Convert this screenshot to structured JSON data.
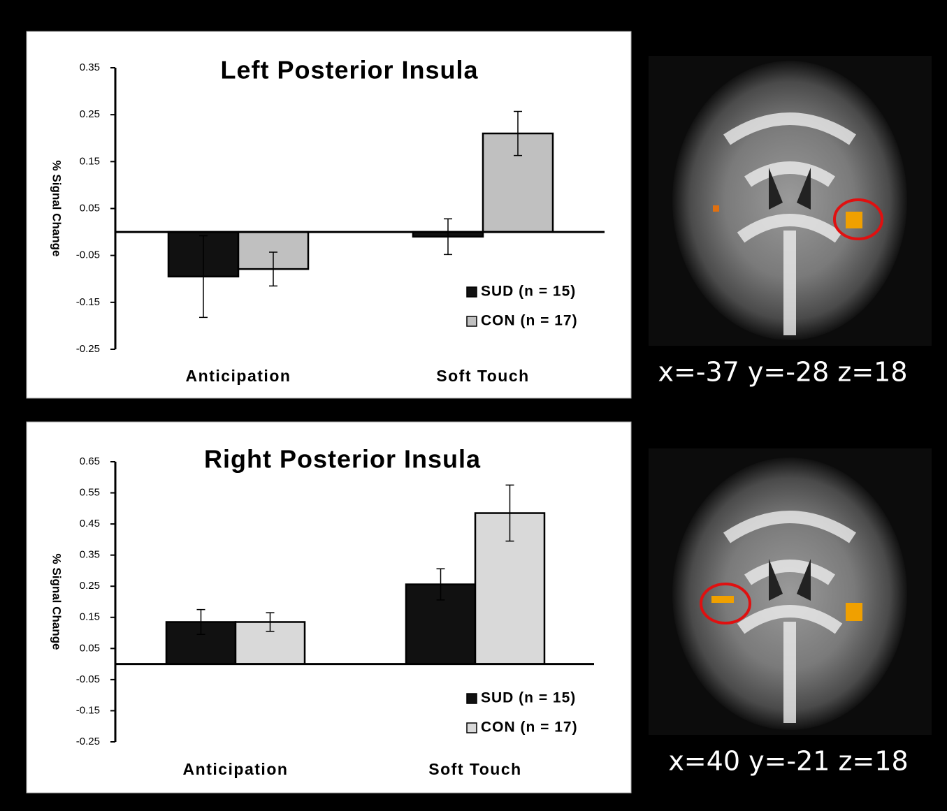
{
  "chart_data": [
    {
      "type": "bar",
      "title": "Left Posterior Insula",
      "y_label": "% Signal Change",
      "categories": [
        "Anticipation",
        "Soft Touch"
      ],
      "series": [
        {
          "name": "SUD (n = 15)",
          "color": "#111111",
          "values": [
            -0.095,
            -0.01
          ],
          "errors": [
            0.087,
            0.038
          ]
        },
        {
          "name": "CON (n = 17)",
          "color": "#c0c0c0",
          "values": [
            -0.079,
            0.21
          ],
          "errors": [
            0.036,
            0.047
          ]
        }
      ],
      "ylim": [
        -0.25,
        0.35
      ],
      "yticks": [
        -0.25,
        -0.15,
        -0.05,
        0.05,
        0.15,
        0.25,
        0.35
      ],
      "legend": "lower right"
    },
    {
      "type": "bar",
      "title": "Right Posterior Insula",
      "y_label": "% Signal Change",
      "categories": [
        "Anticipation",
        "Soft Touch"
      ],
      "series": [
        {
          "name": "SUD (n = 15)",
          "color": "#111111",
          "values": [
            0.135,
            0.256
          ],
          "errors": [
            0.04,
            0.05
          ]
        },
        {
          "name": "CON (n = 17)",
          "color": "#d9d9d9",
          "values": [
            0.135,
            0.485
          ],
          "errors": [
            0.03,
            0.09
          ]
        }
      ],
      "ylim": [
        -0.25,
        0.65
      ],
      "yticks": [
        -0.25,
        -0.15,
        -0.05,
        0.05,
        0.15,
        0.25,
        0.35,
        0.45,
        0.55,
        0.65
      ],
      "legend": "lower right"
    }
  ],
  "images": [
    {
      "label": "x=-37  y=-28  z=18"
    },
    {
      "label": "x=40  y=-21  z=18"
    }
  ]
}
